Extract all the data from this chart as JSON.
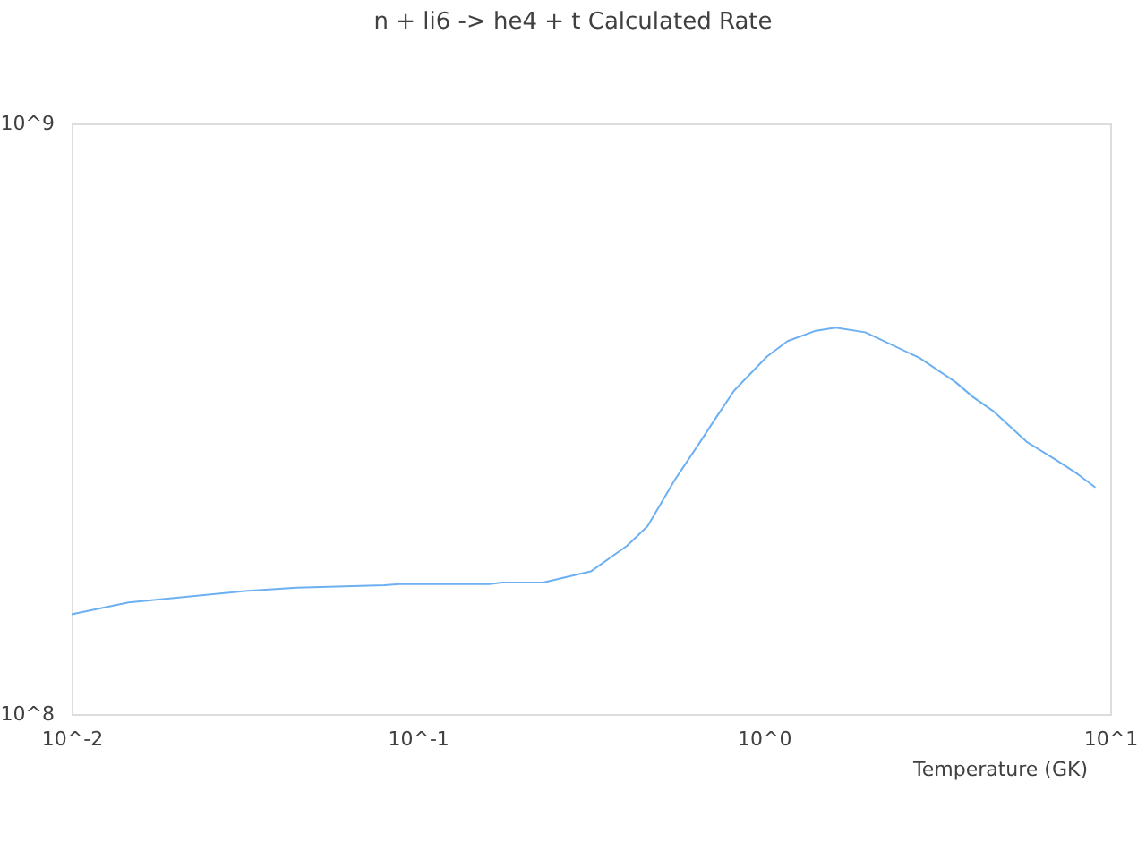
{
  "chart_data": {
    "type": "line",
    "title": "n + li6 -> he4 + t Calculated Rate",
    "xlabel": "Temperature (GK)",
    "x": [
      0.01,
      0.0146,
      0.0316,
      0.0447,
      0.08,
      0.0887,
      0.161,
      0.175,
      0.23,
      0.316,
      0.402,
      0.461,
      0.552,
      0.647,
      0.728,
      0.82,
      1.02,
      1.17,
      1.4,
      1.61,
      1.96,
      2.81,
      3.57,
      4.02,
      4.62,
      5.74,
      7.0,
      8.05,
      9.06
    ],
    "series": [
      {
        "color": "#6cb0f2",
        "values": [
          147500000.0,
          154500000.0,
          161500000.0,
          163700000.0,
          165200000.0,
          166000000.0,
          166000000.0,
          167000000.0,
          167000000.0,
          174400000.0,
          192700000.0,
          208000000.0,
          249000000.0,
          286200000.0,
          318000000.0,
          353000000.0,
          403000000.0,
          428000000.0,
          445000000.0,
          451000000.0,
          443000000.0,
          401000000.0,
          365000000.0,
          344000000.0,
          325000000.0,
          289000000.0,
          269000000.0,
          255000000.0,
          242000000.0
        ]
      }
    ],
    "xlim": [
      0.01,
      10
    ],
    "ylim": [
      100000000.0,
      1000000000.0
    ],
    "xticks": [
      {
        "value": 0.01,
        "label": "10^-2"
      },
      {
        "value": 0.1,
        "label": "10^-1"
      },
      {
        "value": 1,
        "label": "10^0"
      },
      {
        "value": 10,
        "label": "10^1"
      }
    ],
    "yticks": [
      {
        "value": 100000000.0,
        "label": "10^8"
      },
      {
        "value": 1000000000.0,
        "label": "10^9"
      }
    ],
    "log": "xy",
    "grid": false
  }
}
